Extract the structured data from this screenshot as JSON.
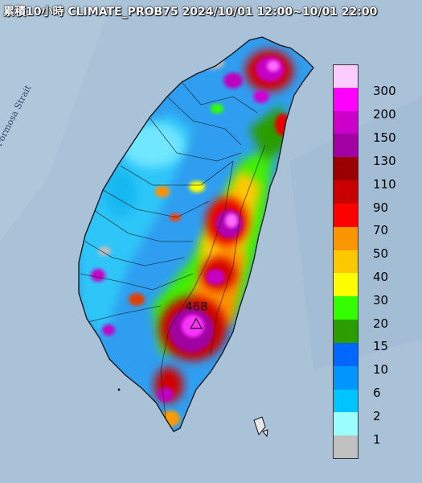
{
  "header": {
    "title": "累積10小時 CLIMATE_PROB75 2024/10/01 12:00~10/01 22:00"
  },
  "map": {
    "strait_label": "Formosa Strait",
    "max_value_label": "468",
    "ocean_color": "#a9c2d8",
    "land_color": "#9fb6cc"
  },
  "legend": {
    "items": [
      {
        "label": "300",
        "color": "#fccbff"
      },
      {
        "label": "200",
        "color": "#fd00fd"
      },
      {
        "label": "150",
        "color": "#cb00cb"
      },
      {
        "label": "130",
        "color": "#a200a2"
      },
      {
        "label": "110",
        "color": "#9b0000"
      },
      {
        "label": "90",
        "color": "#c80000"
      },
      {
        "label": "70",
        "color": "#fc0000"
      },
      {
        "label": "50",
        "color": "#fc9600"
      },
      {
        "label": "40",
        "color": "#fcc800"
      },
      {
        "label": "30",
        "color": "#fefe00"
      },
      {
        "label": "20",
        "color": "#33ff00"
      },
      {
        "label": "15",
        "color": "#2b9d00"
      },
      {
        "label": "10",
        "color": "#0067fd"
      },
      {
        "label": "6",
        "color": "#0096fd"
      },
      {
        "label": "2",
        "color": "#00c4ff"
      },
      {
        "label": "1",
        "color": "#9dfefe"
      },
      {
        "label": "",
        "color": "#c0c0c0"
      }
    ]
  }
}
